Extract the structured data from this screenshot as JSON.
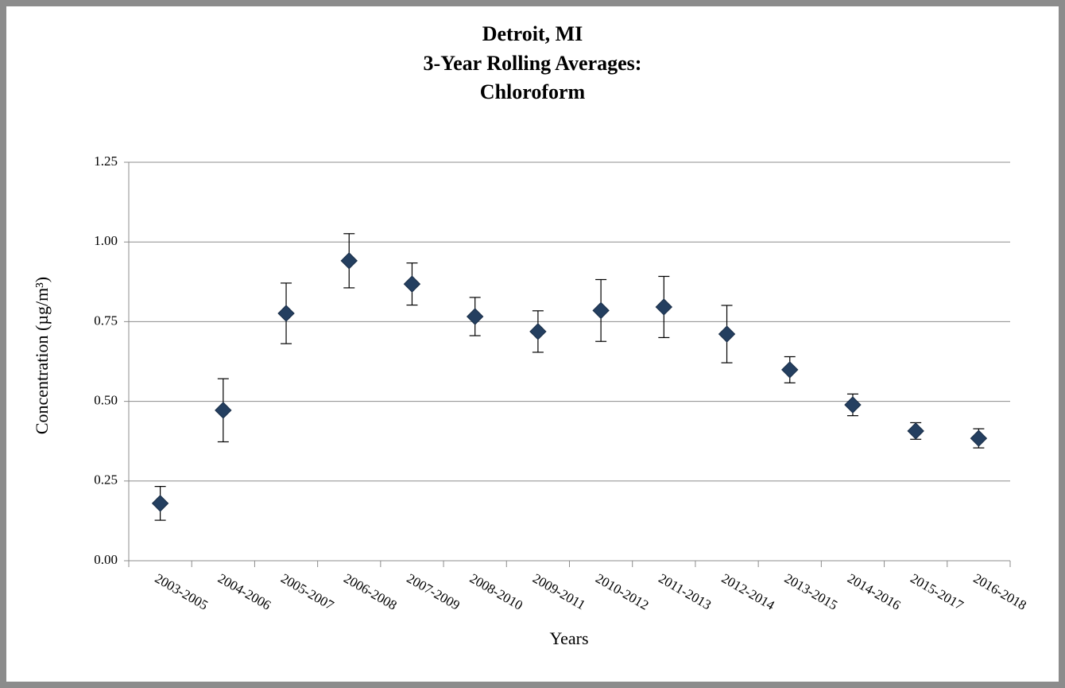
{
  "chart_data": {
    "type": "errorbar",
    "title": [
      "Detroit, MI",
      "3-Year Rolling Averages:",
      "Chloroform"
    ],
    "x_label": "Years",
    "y_label": "Concentration (µg/m³)",
    "categories": [
      "2003-2005",
      "2004-2006",
      "2005-2007",
      "2006-2008",
      "2007-2009",
      "2008-2010",
      "2009-2011",
      "2010-2012",
      "2011-2013",
      "2012-2014",
      "2013-2015",
      "2014-2016",
      "2015-2017",
      "2016-2018"
    ],
    "values": [
      0.18,
      0.472,
      0.776,
      0.941,
      0.868,
      0.766,
      0.719,
      0.785,
      0.796,
      0.711,
      0.599,
      0.489,
      0.407,
      0.384
    ],
    "errors": [
      0.053,
      0.099,
      0.095,
      0.085,
      0.066,
      0.06,
      0.065,
      0.097,
      0.096,
      0.09,
      0.041,
      0.034,
      0.026,
      0.03
    ],
    "color": "#243f60",
    "ylim": [
      0,
      1.25
    ],
    "yticks": [
      {
        "value": 0,
        "label": "0.00"
      },
      {
        "value": 0.25,
        "label": "0.25"
      },
      {
        "value": 0.5,
        "label": "0.50"
      },
      {
        "value": 0.75,
        "label": "0.75"
      },
      {
        "value": 1,
        "label": "1.00"
      },
      {
        "value": 1.25,
        "label": "1.25"
      }
    ],
    "grid": true
  }
}
